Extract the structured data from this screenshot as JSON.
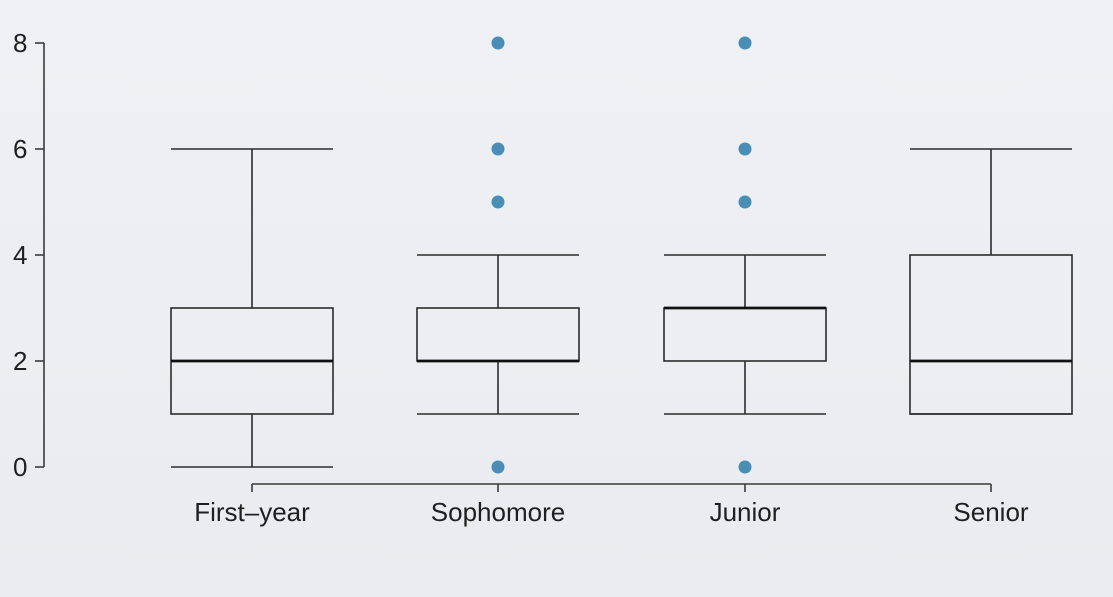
{
  "chart_data": {
    "type": "box",
    "title": "",
    "xlabel": "",
    "ylabel": "",
    "ylim": [
      0,
      8
    ],
    "yticks": [
      0,
      2,
      4,
      6,
      8
    ],
    "grid": false,
    "legend": "none",
    "outlier_color": "#4a8db5",
    "categories": [
      "First–year",
      "Sophomore",
      "Junior",
      "Senior"
    ],
    "boxes": [
      {
        "category": "First–year",
        "whisker_low": 0,
        "q1": 1,
        "median": 2,
        "q3": 3,
        "whisker_high": 6,
        "outliers": []
      },
      {
        "category": "Sophomore",
        "whisker_low": 1,
        "q1": 2,
        "median": 2,
        "q3": 3,
        "whisker_high": 4,
        "outliers": [
          0,
          5,
          6,
          8
        ]
      },
      {
        "category": "Junior",
        "whisker_low": 1,
        "q1": 2,
        "median": 3,
        "q3": 3,
        "whisker_high": 4,
        "outliers": [
          0,
          5,
          6,
          8
        ]
      },
      {
        "category": "Senior",
        "whisker_low": 1,
        "q1": 1,
        "median": 2,
        "q3": 4,
        "whisker_high": 6,
        "outliers": []
      }
    ]
  }
}
